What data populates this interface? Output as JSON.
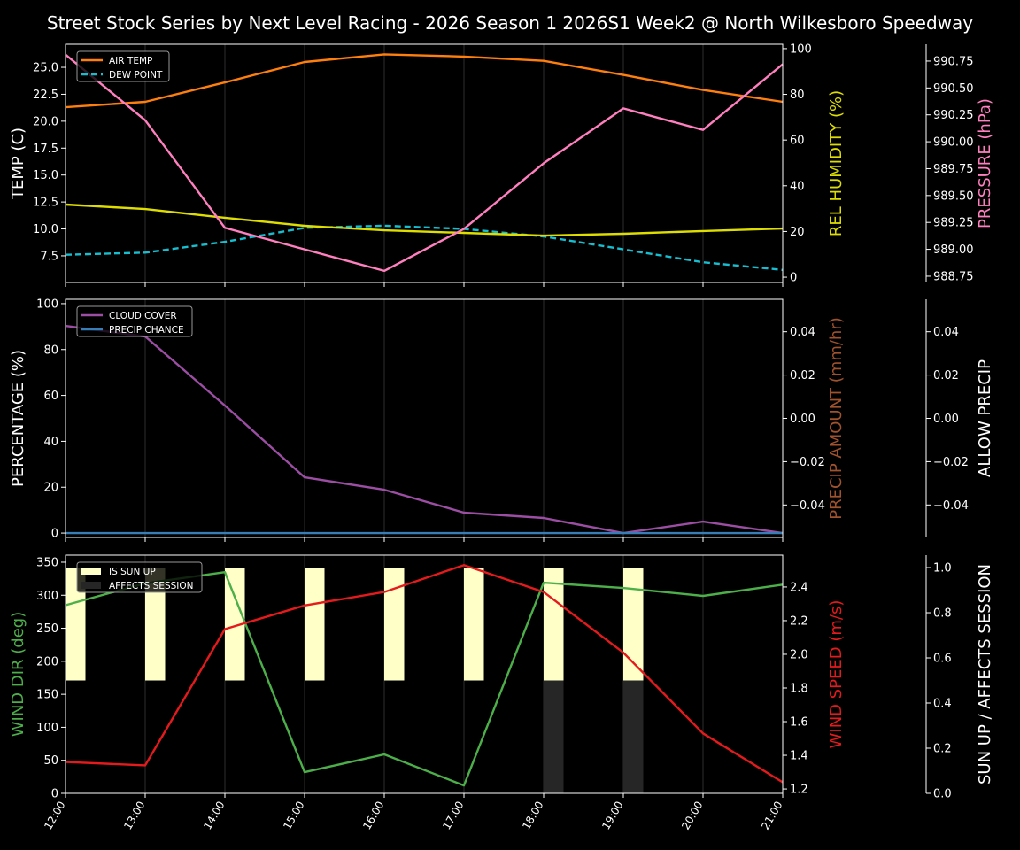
{
  "title": "Street Stock Series by Next Level Racing - 2026 Season 1 2026S1 Week2 @ North Wilkesboro Speedway",
  "chart_data": [
    {
      "type": "line",
      "x": [
        "12:00",
        "13:00",
        "14:00",
        "15:00",
        "16:00",
        "17:00",
        "18:00",
        "19:00",
        "20:00",
        "21:00"
      ],
      "axes": {
        "left": {
          "label": "TEMP (C)",
          "color": "#ffffff",
          "ylim": [
            5.03,
            27.14
          ],
          "ticks": [
            "7.5",
            "10.0",
            "12.5",
            "15.0",
            "17.5",
            "20.0",
            "22.5",
            "25.0"
          ]
        },
        "right1": {
          "label": "REL HUMIDITY (%)",
          "color": "#dddd00",
          "ylim": [
            -2.3,
            101.9
          ],
          "ticks": [
            "0",
            "20",
            "40",
            "60",
            "80",
            "100"
          ]
        },
        "right2": {
          "label": "PRESSURE (hPa)",
          "color": "#ff7fbf",
          "ylim": [
            988.692,
            990.906
          ],
          "ticks": [
            "988.75",
            "989.00",
            "989.25",
            "989.50",
            "989.75",
            "990.00",
            "990.25",
            "990.50",
            "990.75"
          ]
        }
      },
      "series": [
        {
          "name": "AIR TEMP",
          "axis": "left",
          "color": "#ff7f0e",
          "dashed": false,
          "legend": true,
          "values": [
            21.3,
            21.8,
            23.6,
            25.5,
            26.2,
            26.0,
            25.6,
            24.3,
            22.9,
            21.8
          ]
        },
        {
          "name": "DEW POINT",
          "axis": "left",
          "color": "#17becf",
          "dashed": true,
          "legend": true,
          "values": [
            7.6,
            7.8,
            8.8,
            10.1,
            10.3,
            10.0,
            9.3,
            8.1,
            6.9,
            6.2
          ]
        },
        {
          "axis": "right1",
          "color": "#dddd00",
          "dashed": false,
          "legend": false,
          "values": [
            31.8,
            29.8,
            26.0,
            22.5,
            20.5,
            19.4,
            18.2,
            19.0,
            20.2,
            21.3
          ]
        },
        {
          "axis": "right2",
          "color": "#ff7fbf",
          "dashed": false,
          "legend": false,
          "values": [
            990.81,
            990.2,
            989.2,
            989.0,
            988.8,
            989.19,
            989.8,
            990.31,
            990.11,
            990.72
          ]
        }
      ],
      "grid": "vertical",
      "legend_position": "top-left"
    },
    {
      "type": "line",
      "x": [
        "12:00",
        "13:00",
        "14:00",
        "15:00",
        "16:00",
        "17:00",
        "18:00",
        "19:00",
        "20:00",
        "21:00"
      ],
      "axes": {
        "left": {
          "label": "PERCENTAGE (%)",
          "color": "#ffffff",
          "ylim": [
            -1.9,
            101.9
          ],
          "ticks": [
            "0",
            "20",
            "40",
            "60",
            "80",
            "100"
          ]
        },
        "right1": {
          "label": "PRECIP AMOUNT (mm/hr)",
          "color": "#a0522d",
          "ylim": [
            -0.055,
            0.055
          ],
          "ticks": [
            "−0.04",
            "−0.02",
            "0.00",
            "0.02",
            "0.04"
          ]
        },
        "right2": {
          "label": "ALLOW PRECIP",
          "color": "#ffffff",
          "ylim": [
            -0.055,
            0.055
          ],
          "ticks": [
            "−0.04",
            "−0.02",
            "0.00",
            "0.02",
            "0.04"
          ]
        }
      },
      "series": [
        {
          "name": "CLOUD COVER",
          "axis": "left",
          "color": "#9b4ea3",
          "dashed": false,
          "legend": true,
          "values": [
            90.3,
            85.7,
            55.6,
            24.3,
            18.9,
            8.9,
            6.6,
            0,
            5.0,
            0
          ]
        },
        {
          "name": "PRECIP CHANCE",
          "axis": "left",
          "color": "#377eb8",
          "dashed": false,
          "legend": true,
          "values": [
            0,
            0,
            0,
            0,
            0,
            0,
            0,
            0,
            0,
            0
          ]
        }
      ],
      "grid": "vertical",
      "legend_position": "top-left"
    },
    {
      "type": "line",
      "x": [
        "12:00",
        "13:00",
        "14:00",
        "15:00",
        "16:00",
        "17:00",
        "18:00",
        "19:00",
        "20:00",
        "21:00"
      ],
      "axes": {
        "left": {
          "label": "WIND DIR (deg)",
          "color": "#4daf4a",
          "ylim": [
            0,
            360.7
          ],
          "ticks": [
            "0",
            "50",
            "100",
            "150",
            "200",
            "250",
            "300",
            "350"
          ]
        },
        "right1": {
          "label": "WIND SPEED (m/s)",
          "color": "#e41a1c",
          "ylim": [
            1.174,
            2.589
          ],
          "ticks": [
            "1.2",
            "1.4",
            "1.6",
            "1.8",
            "2.0",
            "2.2",
            "2.4"
          ]
        },
        "right2": {
          "label": "SUN UP / AFFECTS SESSION",
          "color": "#ffffff",
          "ylim": [
            0,
            1.055
          ],
          "ticks": [
            "0.0",
            "0.2",
            "0.4",
            "0.6",
            "0.8",
            "1.0"
          ]
        }
      },
      "bars": [
        {
          "name": "IS SUN UP",
          "color": "#ffffc8",
          "values": [
            1,
            1,
            1,
            1,
            1,
            1,
            1,
            1,
            0,
            0
          ]
        },
        {
          "name": "AFFECTS SESSION",
          "color": "#262626",
          "values": [
            0,
            0,
            0,
            0,
            0,
            0,
            1,
            1,
            0,
            0
          ]
        }
      ],
      "series": [
        {
          "axis": "left",
          "color": "#4daf4a",
          "dashed": false,
          "legend": false,
          "values": [
            285,
            318,
            335,
            32,
            59,
            12,
            319,
            311,
            299,
            316
          ]
        },
        {
          "axis": "right1",
          "color": "#e41a1c",
          "dashed": false,
          "legend": false,
          "values": [
            1.36,
            1.34,
            2.15,
            2.29,
            2.37,
            2.53,
            2.37,
            2.01,
            1.53,
            1.24
          ]
        }
      ],
      "grid": "vertical",
      "legend_position": "top-left"
    }
  ]
}
